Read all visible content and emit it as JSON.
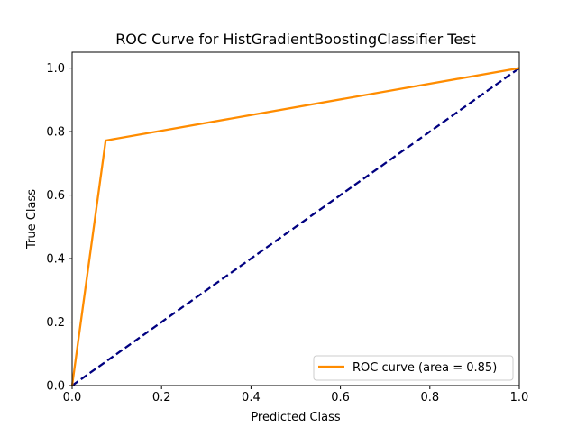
{
  "chart_data": {
    "type": "line",
    "title": "ROC Curve for HistGradientBoostingClassifier Test",
    "xlabel": "Predicted Class",
    "ylabel": "True Class",
    "xlim": [
      0.0,
      1.0
    ],
    "ylim": [
      0.0,
      1.05
    ],
    "x_ticks": [
      0.0,
      0.2,
      0.4,
      0.6,
      0.8,
      1.0
    ],
    "y_ticks": [
      0.0,
      0.2,
      0.4,
      0.6,
      0.8,
      1.0
    ],
    "x_tick_labels": [
      "0.0",
      "0.2",
      "0.4",
      "0.6",
      "0.8",
      "1.0"
    ],
    "y_tick_labels": [
      "0.0",
      "0.2",
      "0.4",
      "0.6",
      "0.8",
      "1.0"
    ],
    "grid": false,
    "legend_position": "lower-right",
    "series": [
      {
        "name": "ROC curve (area = 0.85)",
        "color": "#ff8c00",
        "style": "solid",
        "x": [
          0.0,
          0.075,
          1.0
        ],
        "y": [
          0.0,
          0.772,
          1.0
        ]
      },
      {
        "color": "#000080",
        "style": "dashed",
        "x": [
          0.0,
          1.0
        ],
        "y": [
          0.0,
          1.0
        ]
      }
    ]
  }
}
